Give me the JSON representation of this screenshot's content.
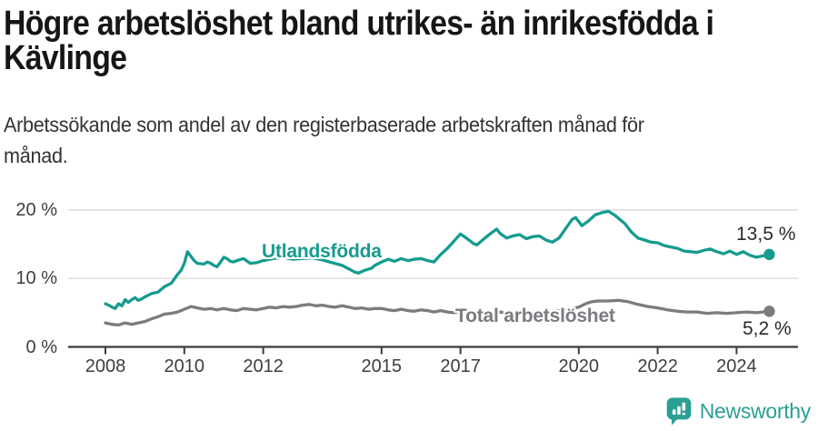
{
  "header": {
    "title_lines": [
      "Högre arbetslöshet bland utrikes- än inrikesfödda i",
      "Kävlinge"
    ],
    "subtitle_lines": [
      "Arbetssökande som andel av den registerbaserade arbetskraften månad för",
      "månad."
    ]
  },
  "chart_data": {
    "type": "line",
    "xlabel": "",
    "ylabel": "",
    "ylim": [
      0,
      21.5
    ],
    "xlim": [
      2007.8,
      2025.3
    ],
    "grid": "horizontal",
    "y_ticks": [
      {
        "value": 0,
        "label": "0 %"
      },
      {
        "value": 10,
        "label": "10 %"
      },
      {
        "value": 20,
        "label": "20 %"
      }
    ],
    "x_ticks": [
      {
        "value": 2008,
        "label": "2008"
      },
      {
        "value": 2010,
        "label": "2010"
      },
      {
        "value": 2012,
        "label": "2012"
      },
      {
        "value": 2015,
        "label": "2015"
      },
      {
        "value": 2017,
        "label": "2017"
      },
      {
        "value": 2020,
        "label": "2020"
      },
      {
        "value": 2022,
        "label": "2022"
      },
      {
        "value": 2024,
        "label": "2024"
      }
    ],
    "series": [
      {
        "name": "Utlandsfödda",
        "color": "#169b8f",
        "end_label": "13,5 %",
        "end_value": 13.5,
        "points": [
          [
            2008.0,
            6.3
          ],
          [
            2008.08,
            6.1
          ],
          [
            2008.17,
            5.8
          ],
          [
            2008.25,
            5.6
          ],
          [
            2008.33,
            6.3
          ],
          [
            2008.42,
            6.0
          ],
          [
            2008.5,
            6.9
          ],
          [
            2008.58,
            6.5
          ],
          [
            2008.67,
            6.9
          ],
          [
            2008.75,
            7.2
          ],
          [
            2008.83,
            6.8
          ],
          [
            2008.92,
            7.0
          ],
          [
            2009.0,
            7.3
          ],
          [
            2009.17,
            7.8
          ],
          [
            2009.33,
            8.0
          ],
          [
            2009.5,
            8.8
          ],
          [
            2009.67,
            9.3
          ],
          [
            2009.83,
            10.6
          ],
          [
            2009.92,
            11.2
          ],
          [
            2010.0,
            12.2
          ],
          [
            2010.08,
            13.9
          ],
          [
            2010.17,
            13.2
          ],
          [
            2010.25,
            12.6
          ],
          [
            2010.33,
            12.2
          ],
          [
            2010.5,
            12.1
          ],
          [
            2010.58,
            12.4
          ],
          [
            2010.67,
            12.2
          ],
          [
            2010.75,
            11.9
          ],
          [
            2010.83,
            11.7
          ],
          [
            2010.92,
            12.4
          ],
          [
            2011.0,
            13.1
          ],
          [
            2011.08,
            12.9
          ],
          [
            2011.17,
            12.5
          ],
          [
            2011.25,
            12.4
          ],
          [
            2011.33,
            12.6
          ],
          [
            2011.5,
            12.9
          ],
          [
            2011.67,
            12.2
          ],
          [
            2011.83,
            12.3
          ],
          [
            2012.0,
            12.6
          ],
          [
            2012.25,
            12.9
          ],
          [
            2012.5,
            13.1
          ],
          [
            2012.75,
            12.8
          ],
          [
            2013.0,
            12.9
          ],
          [
            2013.25,
            13.0
          ],
          [
            2013.5,
            12.7
          ],
          [
            2013.75,
            12.3
          ],
          [
            2014.0,
            11.9
          ],
          [
            2014.17,
            11.4
          ],
          [
            2014.33,
            10.9
          ],
          [
            2014.42,
            10.8
          ],
          [
            2014.58,
            11.2
          ],
          [
            2014.75,
            11.5
          ],
          [
            2014.83,
            11.9
          ],
          [
            2015.0,
            12.4
          ],
          [
            2015.17,
            12.8
          ],
          [
            2015.33,
            12.5
          ],
          [
            2015.5,
            12.9
          ],
          [
            2015.67,
            12.6
          ],
          [
            2015.83,
            12.8
          ],
          [
            2016.0,
            12.9
          ],
          [
            2016.17,
            12.6
          ],
          [
            2016.33,
            12.4
          ],
          [
            2016.5,
            13.5
          ],
          [
            2016.67,
            14.4
          ],
          [
            2016.83,
            15.4
          ],
          [
            2017.0,
            16.5
          ],
          [
            2017.17,
            15.8
          ],
          [
            2017.33,
            15.1
          ],
          [
            2017.42,
            14.9
          ],
          [
            2017.58,
            15.7
          ],
          [
            2017.75,
            16.5
          ],
          [
            2017.92,
            17.2
          ],
          [
            2018.0,
            16.6
          ],
          [
            2018.17,
            15.9
          ],
          [
            2018.33,
            16.2
          ],
          [
            2018.5,
            16.4
          ],
          [
            2018.67,
            15.8
          ],
          [
            2018.83,
            16.1
          ],
          [
            2019.0,
            16.2
          ],
          [
            2019.17,
            15.6
          ],
          [
            2019.33,
            15.3
          ],
          [
            2019.5,
            15.9
          ],
          [
            2019.67,
            17.3
          ],
          [
            2019.83,
            18.6
          ],
          [
            2019.92,
            18.9
          ],
          [
            2020.0,
            18.3
          ],
          [
            2020.08,
            17.7
          ],
          [
            2020.25,
            18.4
          ],
          [
            2020.42,
            19.3
          ],
          [
            2020.58,
            19.6
          ],
          [
            2020.75,
            19.8
          ],
          [
            2020.92,
            19.2
          ],
          [
            2021.0,
            18.8
          ],
          [
            2021.17,
            18.0
          ],
          [
            2021.33,
            16.8
          ],
          [
            2021.5,
            15.9
          ],
          [
            2021.67,
            15.6
          ],
          [
            2021.83,
            15.3
          ],
          [
            2022.0,
            15.2
          ],
          [
            2022.17,
            14.8
          ],
          [
            2022.33,
            14.6
          ],
          [
            2022.5,
            14.4
          ],
          [
            2022.67,
            14.0
          ],
          [
            2022.83,
            13.9
          ],
          [
            2023.0,
            13.8
          ],
          [
            2023.17,
            14.1
          ],
          [
            2023.33,
            14.3
          ],
          [
            2023.5,
            13.9
          ],
          [
            2023.67,
            13.6
          ],
          [
            2023.83,
            14.0
          ],
          [
            2024.0,
            13.5
          ],
          [
            2024.17,
            13.9
          ],
          [
            2024.33,
            13.4
          ],
          [
            2024.5,
            13.1
          ],
          [
            2024.67,
            13.3
          ],
          [
            2024.83,
            13.5
          ]
        ]
      },
      {
        "name": "Total arbetslöshet",
        "color": "#7b7b80",
        "end_label": "5,2 %",
        "end_value": 5.2,
        "points": [
          [
            2008.0,
            3.5
          ],
          [
            2008.17,
            3.3
          ],
          [
            2008.33,
            3.2
          ],
          [
            2008.5,
            3.5
          ],
          [
            2008.67,
            3.3
          ],
          [
            2008.83,
            3.5
          ],
          [
            2009.0,
            3.7
          ],
          [
            2009.17,
            4.1
          ],
          [
            2009.33,
            4.4
          ],
          [
            2009.5,
            4.8
          ],
          [
            2009.67,
            4.9
          ],
          [
            2009.83,
            5.1
          ],
          [
            2010.0,
            5.5
          ],
          [
            2010.17,
            5.9
          ],
          [
            2010.33,
            5.7
          ],
          [
            2010.5,
            5.5
          ],
          [
            2010.67,
            5.6
          ],
          [
            2010.83,
            5.4
          ],
          [
            2011.0,
            5.6
          ],
          [
            2011.17,
            5.4
          ],
          [
            2011.33,
            5.3
          ],
          [
            2011.5,
            5.6
          ],
          [
            2011.67,
            5.5
          ],
          [
            2011.83,
            5.4
          ],
          [
            2012.0,
            5.6
          ],
          [
            2012.17,
            5.8
          ],
          [
            2012.33,
            5.7
          ],
          [
            2012.5,
            5.9
          ],
          [
            2012.67,
            5.8
          ],
          [
            2012.83,
            5.9
          ],
          [
            2013.0,
            6.1
          ],
          [
            2013.17,
            6.2
          ],
          [
            2013.33,
            6.0
          ],
          [
            2013.5,
            6.1
          ],
          [
            2013.67,
            5.9
          ],
          [
            2013.83,
            5.8
          ],
          [
            2014.0,
            6.0
          ],
          [
            2014.17,
            5.8
          ],
          [
            2014.33,
            5.6
          ],
          [
            2014.5,
            5.7
          ],
          [
            2014.67,
            5.5
          ],
          [
            2014.83,
            5.6
          ],
          [
            2015.0,
            5.6
          ],
          [
            2015.17,
            5.4
          ],
          [
            2015.33,
            5.3
          ],
          [
            2015.5,
            5.5
          ],
          [
            2015.67,
            5.3
          ],
          [
            2015.83,
            5.2
          ],
          [
            2016.0,
            5.4
          ],
          [
            2016.17,
            5.3
          ],
          [
            2016.33,
            5.1
          ],
          [
            2016.5,
            5.3
          ],
          [
            2016.67,
            5.1
          ],
          [
            2016.83,
            5.0
          ],
          [
            2017.0,
            5.2
          ],
          [
            2017.25,
            5.0
          ],
          [
            2017.5,
            5.2
          ],
          [
            2017.75,
            4.9
          ],
          [
            2018.0,
            5.1
          ],
          [
            2018.25,
            4.9
          ],
          [
            2018.5,
            5.1
          ],
          [
            2018.75,
            5.0
          ],
          [
            2019.0,
            5.2
          ],
          [
            2019.25,
            5.1
          ],
          [
            2019.5,
            5.3
          ],
          [
            2019.75,
            5.5
          ],
          [
            2020.0,
            5.8
          ],
          [
            2020.17,
            6.3
          ],
          [
            2020.33,
            6.6
          ],
          [
            2020.5,
            6.7
          ],
          [
            2020.75,
            6.7
          ],
          [
            2021.0,
            6.8
          ],
          [
            2021.25,
            6.6
          ],
          [
            2021.5,
            6.2
          ],
          [
            2021.75,
            5.9
          ],
          [
            2022.0,
            5.7
          ],
          [
            2022.25,
            5.4
          ],
          [
            2022.5,
            5.2
          ],
          [
            2022.75,
            5.1
          ],
          [
            2023.0,
            5.1
          ],
          [
            2023.25,
            4.9
          ],
          [
            2023.5,
            5.0
          ],
          [
            2023.75,
            4.9
          ],
          [
            2024.0,
            5.0
          ],
          [
            2024.25,
            5.1
          ],
          [
            2024.5,
            5.0
          ],
          [
            2024.67,
            5.1
          ],
          [
            2024.83,
            5.2
          ]
        ]
      }
    ]
  },
  "footer": {
    "brand": "Newsworthy"
  },
  "colors": {
    "accent_teal": "#169b8f",
    "line_gray": "#7b7b80",
    "grid": "#d9d9d9",
    "axis": "#3b3b3b",
    "tick_text": "#3e3e3e",
    "title_text": "#161616",
    "value_text": "#2a2a2a",
    "brand_teal": "#2aa094"
  }
}
